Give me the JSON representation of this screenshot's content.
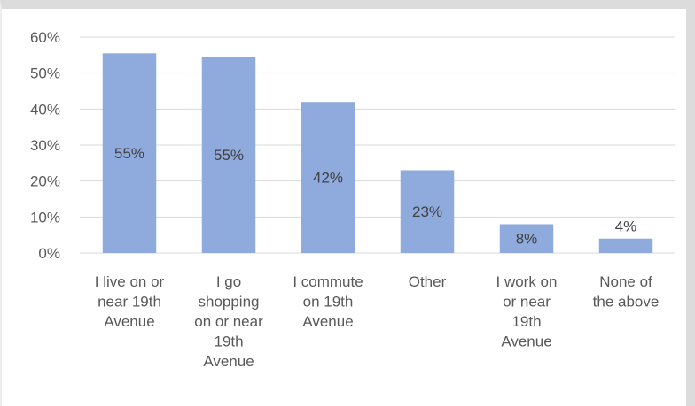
{
  "chart_data": {
    "type": "bar",
    "categories": [
      [
        "I live on or",
        "near 19th",
        "Avenue"
      ],
      [
        "I go",
        "shopping",
        "on or near",
        "19th",
        "Avenue"
      ],
      [
        "I commute",
        "on 19th",
        "Avenue"
      ],
      [
        "Other"
      ],
      [
        "I work on",
        "or near",
        "19th",
        "Avenue"
      ],
      [
        "None of",
        "the above"
      ]
    ],
    "values": [
      55.5,
      54.5,
      42,
      23,
      8,
      4
    ],
    "data_labels": [
      "55%",
      "55%",
      "42%",
      "23%",
      "8%",
      "4%"
    ],
    "ylim": [
      0,
      60
    ],
    "yticks": [
      0,
      10,
      20,
      30,
      40,
      50,
      60
    ],
    "ytick_labels": [
      "0%",
      "10%",
      "20%",
      "30%",
      "40%",
      "50%",
      "60%"
    ],
    "grid": true,
    "legend": "none",
    "colors": {
      "bar": "#8faadc",
      "grid": "#d9d9d9",
      "axis": "#d9d9d9",
      "text": "#595959",
      "frame": "#dcdcdc"
    }
  }
}
